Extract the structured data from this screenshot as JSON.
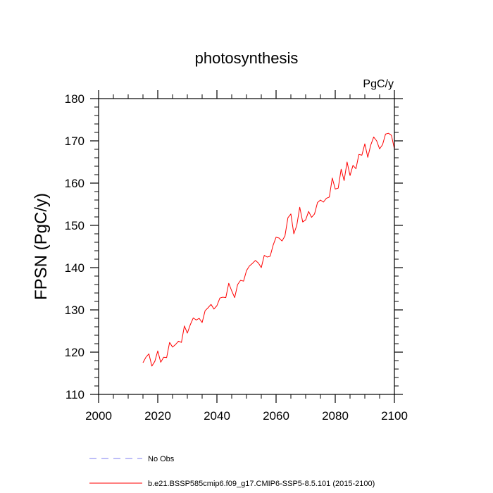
{
  "chart_data": {
    "type": "line",
    "title": "photosynthesis",
    "units": "PgC/y",
    "xlabel": "",
    "ylabel": "FPSN  (PgC/y)",
    "xlim": [
      2000,
      2100
    ],
    "ylim": [
      110,
      180
    ],
    "x_ticks": [
      2000,
      2020,
      2040,
      2060,
      2080,
      2100
    ],
    "y_ticks": [
      110,
      120,
      130,
      140,
      150,
      160,
      170,
      180
    ],
    "grid": false,
    "legend_position": "bottom",
    "series": [
      {
        "name": "b.e21.BSSP585cmip6.f09_g17.CMIP6-SSP5-8.5.101 (2015-2100)",
        "color": "#ff0000",
        "x": [
          2015,
          2016,
          2017,
          2018,
          2019,
          2020,
          2021,
          2022,
          2023,
          2024,
          2025,
          2026,
          2027,
          2028,
          2029,
          2030,
          2031,
          2032,
          2033,
          2034,
          2035,
          2036,
          2037,
          2038,
          2039,
          2040,
          2041,
          2042,
          2043,
          2044,
          2045,
          2046,
          2047,
          2048,
          2049,
          2050,
          2051,
          2052,
          2053,
          2054,
          2055,
          2056,
          2057,
          2058,
          2059,
          2060,
          2061,
          2062,
          2063,
          2064,
          2065,
          2066,
          2067,
          2068,
          2069,
          2070,
          2071,
          2072,
          2073,
          2074,
          2075,
          2076,
          2077,
          2078,
          2079,
          2080,
          2081,
          2082,
          2083,
          2084,
          2085,
          2086,
          2087,
          2088,
          2089,
          2090,
          2091,
          2092,
          2093,
          2094,
          2095,
          2096,
          2097,
          2098,
          2099,
          2100
        ],
        "values": [
          117.5,
          118.8,
          119.6,
          116.7,
          117.8,
          120.3,
          117.6,
          118.8,
          118.7,
          122.3,
          121.2,
          121.8,
          122.6,
          122.3,
          126.2,
          124.5,
          126.5,
          128.1,
          127.6,
          128.0,
          127.0,
          129.8,
          130.5,
          131.3,
          130.2,
          131.0,
          132.8,
          133.0,
          132.9,
          136.3,
          134.5,
          132.9,
          136.0,
          137.0,
          136.8,
          139.3,
          140.4,
          141.0,
          141.7,
          141.1,
          140.0,
          142.9,
          142.5,
          142.7,
          145.3,
          147.2,
          147.0,
          146.3,
          147.5,
          151.8,
          152.7,
          148.0,
          150.0,
          154.3,
          150.8,
          151.3,
          153.3,
          151.9,
          152.7,
          155.4,
          156.0,
          155.5,
          156.4,
          156.7,
          161.2,
          158.6,
          158.8,
          163.3,
          160.6,
          165.0,
          161.8,
          164.2,
          163.4,
          166.8,
          166.6,
          169.3,
          166.1,
          169.0,
          170.9,
          170.0,
          168.1,
          169.1,
          171.6,
          171.8,
          171.3,
          168.1
        ]
      }
    ],
    "legend": [
      {
        "label": "No Obs",
        "color": "#7c7cf2",
        "dash": "dashed"
      },
      {
        "label": "b.e21.BSSP585cmip6.f09_g17.CMIP6-SSP5-8.5.101 (2015-2100)",
        "color": "#ff0000",
        "dash": "solid"
      }
    ]
  }
}
